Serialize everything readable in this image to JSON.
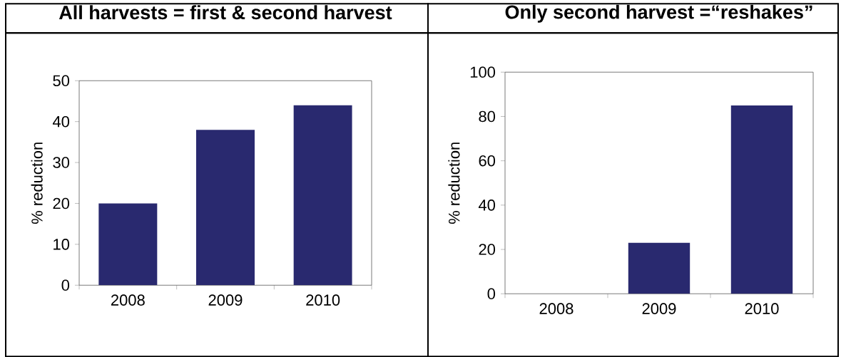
{
  "chart_data": [
    {
      "type": "bar",
      "title": "All harvests = first & second harvest",
      "ylabel": "% reduction",
      "categories": [
        "2008",
        "2009",
        "2010"
      ],
      "values": [
        20,
        38,
        44
      ],
      "color": "#29296f",
      "ylim": [
        0,
        50
      ],
      "yticks": [
        0,
        10,
        20,
        30,
        40,
        50
      ]
    },
    {
      "type": "bar",
      "title": "Only second harvest =“reshakes”",
      "ylabel": "% reduction",
      "categories": [
        "2008",
        "2009",
        "2010"
      ],
      "values": [
        0,
        23,
        85
      ],
      "color": "#29296f",
      "ylim": [
        0,
        100
      ],
      "yticks": [
        0,
        20,
        40,
        60,
        80,
        100
      ]
    }
  ]
}
